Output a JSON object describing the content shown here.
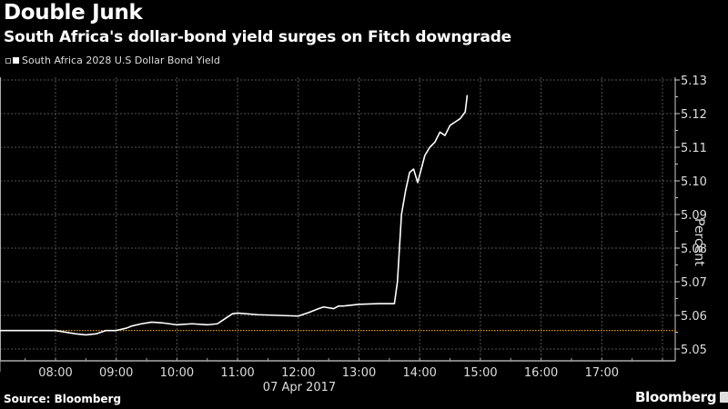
{
  "header": {
    "title": "Double Junk",
    "subtitle": "South Africa's dollar-bond yield surges on Fitch downgrade"
  },
  "legend": {
    "series_label": "South Africa 2028 U.S Dollar Bond Yield"
  },
  "footer": {
    "source": "Source: Bloomberg",
    "brand": "Bloomberg"
  },
  "axes": {
    "ylabel": "Percent",
    "date_label": "07 Apr 2017"
  },
  "colors": {
    "background": "#000000",
    "line": "#ffffff",
    "reference_line": "#e39a1e",
    "grid": "#555555"
  },
  "chart_data": {
    "type": "line",
    "title": "Double Junk",
    "subtitle": "South Africa's dollar-bond yield surges on Fitch downgrade",
    "xlabel": "07 Apr 2017",
    "ylabel": "Percent",
    "x_ticks": [
      "08:00",
      "09:00",
      "10:00",
      "11:00",
      "12:00",
      "13:00",
      "14:00",
      "15:00",
      "16:00",
      "17:00"
    ],
    "y_ticks": [
      5.05,
      5.06,
      5.07,
      5.08,
      5.09,
      5.1,
      5.11,
      5.12,
      5.13
    ],
    "ylim": [
      5.047,
      5.131
    ],
    "grid": true,
    "legend_position": "top-left",
    "reference_line": {
      "value": 5.0555,
      "style": "dotted",
      "color": "#e39a1e"
    },
    "series": [
      {
        "name": "South Africa 2028 U.S Dollar Bond Yield",
        "x": [
          "07:05",
          "07:30",
          "08:00",
          "08:20",
          "08:30",
          "08:40",
          "08:50",
          "09:00",
          "09:10",
          "09:15",
          "09:25",
          "09:35",
          "09:45",
          "10:00",
          "10:15",
          "10:30",
          "10:40",
          "10:45",
          "10:55",
          "11:00",
          "11:20",
          "11:40",
          "12:00",
          "12:10",
          "12:20",
          "12:25",
          "12:35",
          "12:40",
          "12:45",
          "13:00",
          "13:20",
          "13:35",
          "13:38",
          "13:42",
          "13:46",
          "13:50",
          "13:54",
          "13:58",
          "14:02",
          "14:05",
          "14:10",
          "14:15",
          "14:20",
          "14:25",
          "14:30",
          "14:35",
          "14:40",
          "14:45",
          "14:47"
        ],
        "values": [
          5.0555,
          5.0555,
          5.0555,
          5.0545,
          5.0542,
          5.0545,
          5.0555,
          5.0555,
          5.0562,
          5.0568,
          5.0575,
          5.058,
          5.0578,
          5.0572,
          5.0575,
          5.0572,
          5.0575,
          5.0585,
          5.0605,
          5.0607,
          5.0602,
          5.06,
          5.0598,
          5.0608,
          5.062,
          5.0625,
          5.062,
          5.0628,
          5.0628,
          5.0633,
          5.0635,
          5.0635,
          5.07,
          5.09,
          5.097,
          5.1025,
          5.1035,
          5.0995,
          5.104,
          5.1075,
          5.11,
          5.1115,
          5.1145,
          5.1135,
          5.1165,
          5.1175,
          5.1185,
          5.1205,
          5.1255
        ]
      }
    ]
  }
}
